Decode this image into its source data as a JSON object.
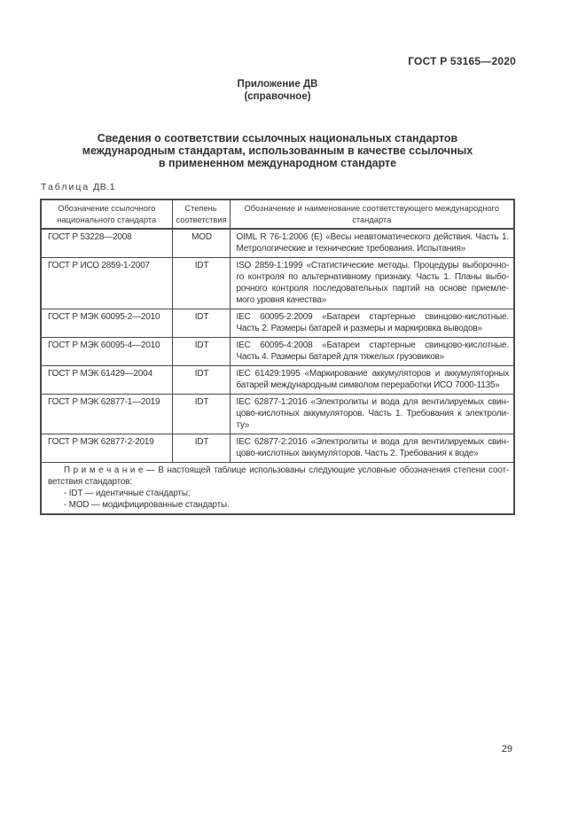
{
  "page": {
    "doc_number": "ГОСТ Р 53165—2020",
    "page_number": "29"
  },
  "annex": {
    "label": "Приложение ДВ",
    "type": "(справочное)"
  },
  "main_title": "Сведения о соответствии ссылочных национальных стандартов\nмеждународным стандартам, использованным в качестве ссылочных\nв примененном международном стандарте",
  "table": {
    "caption_label": "Таблица",
    "caption_number": "ДВ.1",
    "columns": [
      "Обозначение ссылочного\nнационального стандарта",
      "Степень\nсоответствия",
      "Обозначение и наименование соответствующего международного\nстандарта"
    ],
    "rows": [
      {
        "national": "ГОСТ Р 53228—2008",
        "degree": "MOD",
        "international_lines": [
          "OIML R 76-1:2006 (E) «Весы неавтоматического действия. Часть 1.",
          "Метрологические и технические требования. Испытания»"
        ]
      },
      {
        "national": "ГОСТ Р ИСО 2859-1-2007",
        "degree": "IDT",
        "international_lines": [
          "ISO 2859-1:1999 «Статистические методы. Процедуры выборочно-",
          "го контроля по альтернативному признаку. Часть 1. Планы выбо-",
          "рочного контроля последовательных партий на основе приемле-",
          "мого уровня качества»"
        ]
      },
      {
        "national": "ГОСТ Р МЭК 60095-2—2010",
        "degree": "IDT",
        "international_lines": [
          "IEC 60095-2:2009 «Батареи стартерные свинцово-кислотные.",
          "Часть 2. Размеры батарей и размеры и маркировка выводов»"
        ]
      },
      {
        "national": "ГОСТ Р МЭК 60095-4—2010",
        "degree": "IDT",
        "international_lines": [
          "IEC 60095-4:2008 «Батареи стартерные свинцово-кислотные.",
          "Часть 4. Размеры батарей для тяжелых грузовиков»"
        ]
      },
      {
        "national": "ГОСТ Р МЭК 61429—2004",
        "degree": "IDT",
        "international_lines": [
          "IEC 61429:1995 «Маркирование аккумуляторов и аккумуляторных",
          "батарей международным символом переработки ИСО 7000-1135»"
        ]
      },
      {
        "national": "ГОСТ Р МЭК 62877-1—2019",
        "degree": "IDT",
        "international_lines": [
          "IEC 62877-1:2016 «Электролиты и вода для вентилируемых свин-",
          "цово-кислотных аккумуляторов. Часть 1. Требования к электроли-",
          "ту»"
        ]
      },
      {
        "national": "ГОСТ Р МЭК 62877-2-2019",
        "degree": "IDT",
        "international_lines": [
          "IEC 62877-2:2016 «Электролиты и вода для вентилируемых свин-",
          "цово-кислотных аккумуляторов. Часть 2. Требования к воде»"
        ]
      }
    ],
    "note": {
      "lines": [
        {
          "text": "П р и м е ч а н и е — В настоящей таблице использованы следующие условные обозначения степени соот-",
          "indent": true,
          "justify": true
        },
        {
          "text": "ветствия стандартов:",
          "indent": false,
          "justify": false
        },
        {
          "text": "- IDT — идентичные стандарты;",
          "indent": true,
          "justify": false
        },
        {
          "text": "- MOD — модифицированные стандарты.",
          "indent": true,
          "justify": false
        }
      ]
    }
  }
}
